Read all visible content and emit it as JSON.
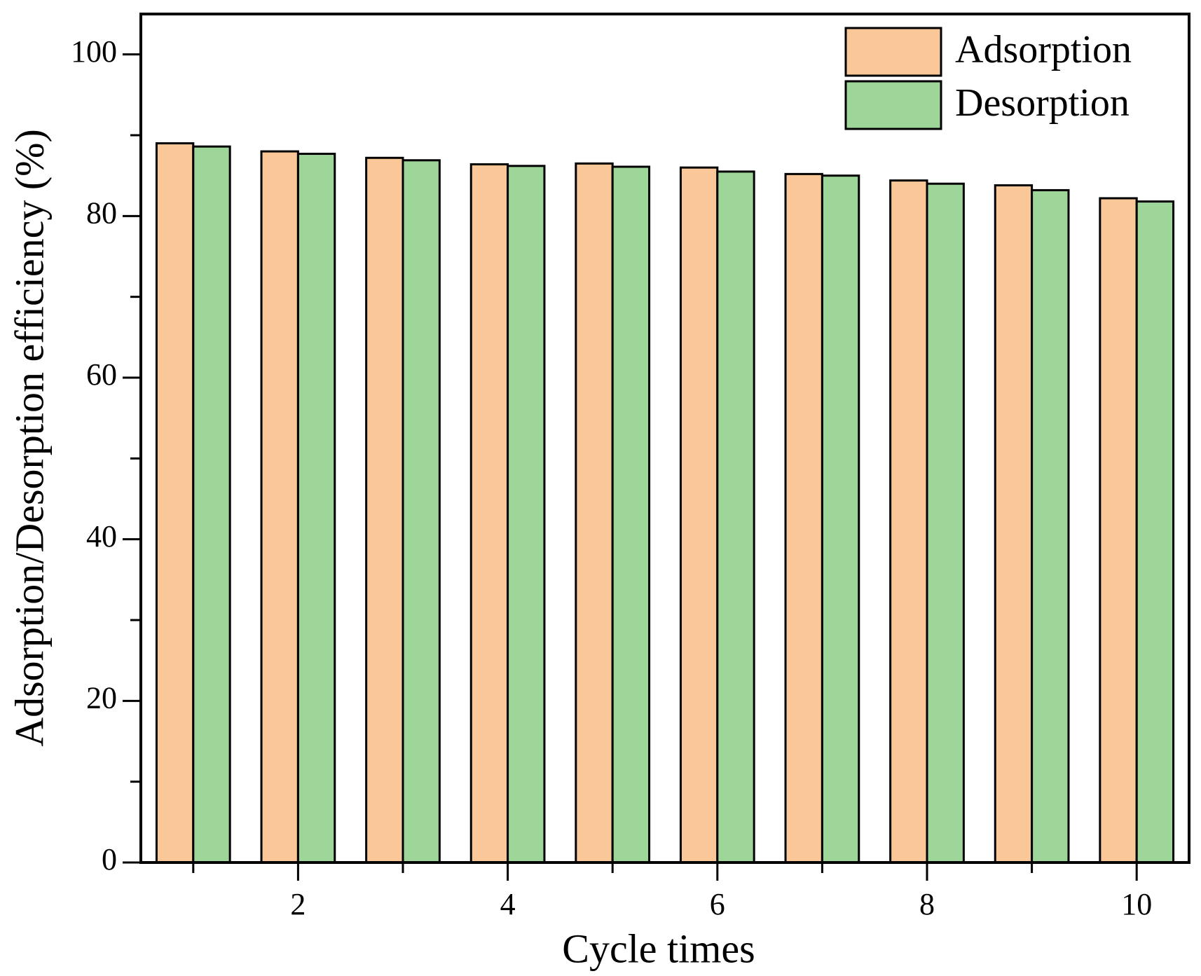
{
  "chart_data": {
    "type": "bar",
    "x_label": "Cycle times",
    "y_label": "Adsorption/Desorption efficiency (%)",
    "x": [
      1,
      2,
      3,
      4,
      5,
      6,
      7,
      8,
      9,
      10
    ],
    "series": [
      {
        "name": "Adsorption",
        "color": "#fac898",
        "values": [
          89.0,
          88.0,
          87.2,
          86.4,
          86.5,
          86.0,
          85.2,
          84.4,
          83.8,
          82.2
        ]
      },
      {
        "name": "Desorption",
        "color": "#9ed69a",
        "values": [
          88.6,
          87.7,
          86.9,
          86.2,
          86.1,
          85.5,
          85.0,
          84.0,
          83.2,
          81.8
        ]
      }
    ],
    "xlim": [
      0.5,
      10.5
    ],
    "xticks": [
      2,
      4,
      6,
      8,
      10
    ],
    "xminorticks": [
      1,
      3,
      5,
      7,
      9
    ],
    "ylim": [
      0,
      105
    ],
    "yticks": [
      0,
      20,
      40,
      60,
      80,
      100
    ],
    "yminorticks": [
      10,
      30,
      50,
      70,
      90
    ],
    "grid": false,
    "legend": "upper right"
  }
}
